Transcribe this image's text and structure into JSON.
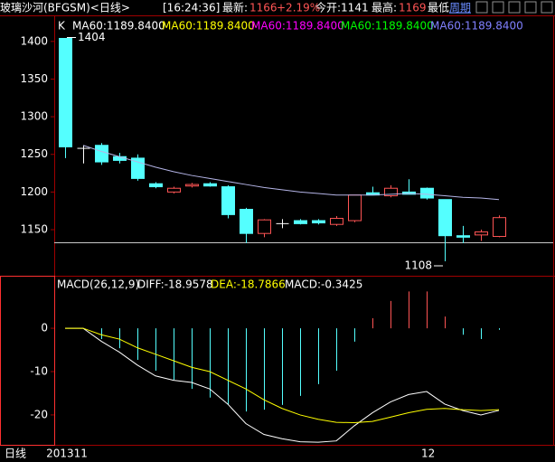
{
  "header": {
    "title": "玻璃沙河(BFGSM)<日线>",
    "time": "[16:24:36]",
    "latest_label": "最新:",
    "latest": 1166,
    "change": "+2.19%",
    "open": "今开:1141",
    "high_label": "最高:",
    "high": 1169,
    "low_label": "最低",
    "period": "周期"
  },
  "chart_data": [
    {
      "type": "candlestick",
      "label": "K",
      "open": [
        1404,
        1258,
        1262,
        1247,
        1245,
        1211,
        1200,
        1208,
        1211,
        1207,
        1177,
        1145,
        1158,
        1162,
        1162,
        1157,
        1162,
        1199,
        1195,
        1200,
        1205,
        1190,
        1142,
        1143,
        1141
      ],
      "high": [
        1404,
        1262,
        1265,
        1252,
        1250,
        1213,
        1207,
        1212,
        1213,
        1209,
        1179,
        1164,
        1164,
        1164,
        1164,
        1168,
        1196,
        1207,
        1209,
        1217,
        1206,
        1190,
        1155,
        1150,
        1169
      ],
      "low": [
        1245,
        1238,
        1236,
        1238,
        1215,
        1205,
        1198,
        1206,
        1207,
        1165,
        1132,
        1140,
        1152,
        1157,
        1157,
        1155,
        1160,
        1196,
        1193,
        1198,
        1190,
        1108,
        1132,
        1135,
        1140
      ],
      "close": [
        1260,
        1258,
        1240,
        1242,
        1218,
        1207,
        1205,
        1210,
        1208,
        1170,
        1145,
        1163,
        1158,
        1158,
        1159,
        1165,
        1196,
        1196,
        1205,
        1197,
        1192,
        1142,
        1140,
        1147,
        1166
      ],
      "up_color": "#ff5454",
      "down_color": "#54ffff",
      "doji_color": "#ffffff",
      "series": [
        {
          "name": "MA60:1189.8400",
          "color": "#b4b4e6",
          "values": [
            null,
            1262,
            1254,
            1247,
            1240,
            1233,
            1227,
            1222,
            1218,
            1214,
            1210,
            1206,
            1203,
            1200,
            1198,
            1196,
            1196,
            1196,
            1197,
            1198,
            1197,
            1195,
            1193,
            1192,
            1190
          ]
        }
      ],
      "legend": [
        {
          "text": "MA60:1189.8400",
          "color": "#ffffff"
        },
        {
          "text": "MA60:1189.8400",
          "color": "#ffff00"
        },
        {
          "text": "MA60:1189.8400",
          "color": "#ff00ff"
        },
        {
          "text": "MA60:1189.8400",
          "color": "#00ff00"
        },
        {
          "text": "MA60:1189.8400",
          "color": "#8080ff"
        }
      ],
      "ylim": [
        1090,
        1431
      ],
      "yticks": [
        1150,
        1200,
        1250,
        1300,
        1350,
        1400
      ]
    },
    {
      "type": "macd",
      "label": "MACD(26,12,9)",
      "x_axis_label": "日线",
      "categories": [
        "201311",
        null,
        null,
        null,
        null,
        null,
        null,
        null,
        null,
        null,
        null,
        null,
        null,
        null,
        null,
        null,
        null,
        null,
        null,
        null,
        "12",
        null,
        null,
        null,
        null
      ],
      "values": [
        0,
        0,
        -2.5,
        -4.6,
        -7.3,
        -9.8,
        -11.9,
        -14,
        -16,
        -17.7,
        -19.2,
        -18.8,
        -17.7,
        -15.6,
        -12.9,
        -9.8,
        -3.1,
        2.3,
        6.3,
        8.5,
        8.5,
        2.7,
        -1.5,
        -2.5,
        -0.3425
      ],
      "up_color": "#ff5454",
      "down_color": "#54ffff",
      "series": [
        {
          "name": "DIFF:-18.9578",
          "color": "#ffffff",
          "values": [
            0,
            0,
            -3,
            -5.5,
            -8.5,
            -11,
            -12,
            -12.5,
            -14,
            -17.5,
            -22,
            -24.5,
            -25.5,
            -26.2,
            -26.3,
            -26,
            -22.5,
            -19.5,
            -17,
            -15.3,
            -14.6,
            -17.5,
            -19,
            -20,
            -18.9578
          ]
        },
        {
          "name": "DEA:-18.7866",
          "color": "#ffff00",
          "values": [
            0,
            0,
            -1.5,
            -2.5,
            -4.5,
            -6,
            -7.5,
            -9,
            -10,
            -12,
            -14,
            -16.5,
            -18.5,
            -20,
            -21,
            -21.7,
            -21.8,
            -21.5,
            -20.5,
            -19.5,
            -18.7,
            -18.5,
            -18.8,
            -19,
            -18.7866
          ]
        }
      ],
      "legend": [
        {
          "text": "MACD:-0.3425",
          "color": "#ffffff"
        }
      ],
      "ylim": [
        -26.9,
        11.7
      ],
      "yticks": [
        -20,
        -10,
        0
      ]
    }
  ]
}
